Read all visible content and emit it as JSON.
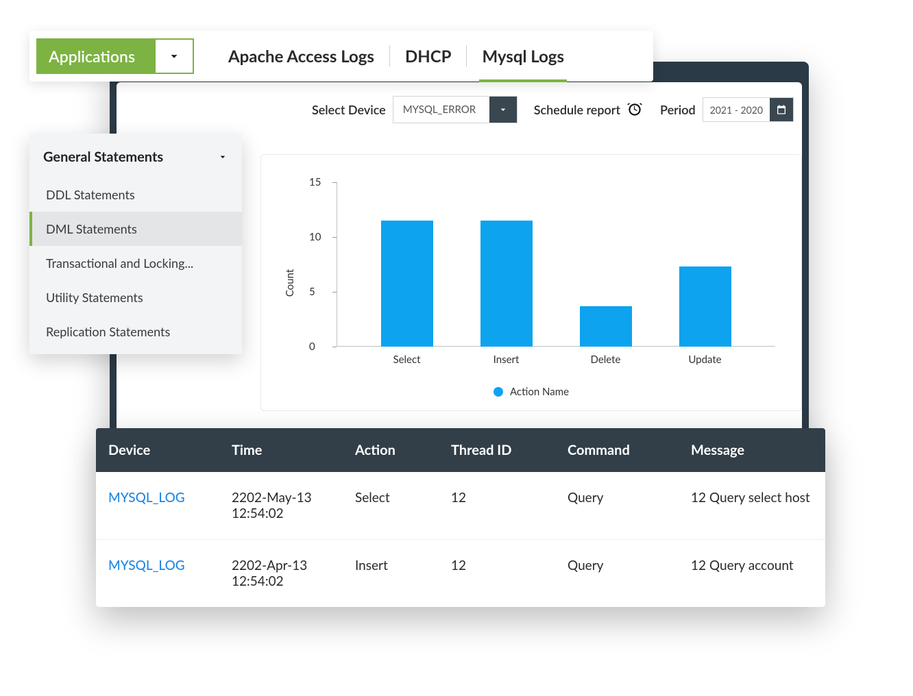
{
  "topbar": {
    "applications_label": "Applications",
    "tabs": [
      {
        "label": "Apache Access Logs",
        "active": false
      },
      {
        "label": "DHCP",
        "active": false
      },
      {
        "label": "Mysql Logs",
        "active": true
      }
    ]
  },
  "controls": {
    "select_device_label": "Select Device",
    "device_value": "MYSQL_ERROR",
    "schedule_label": "Schedule report",
    "period_label": "Period",
    "period_value": "2021 - 2020"
  },
  "sidebar": {
    "title": "General Statements",
    "items": [
      {
        "label": "DDL Statements",
        "active": false
      },
      {
        "label": "DML Statements",
        "active": true
      },
      {
        "label": "Transactional and Locking...",
        "active": false
      },
      {
        "label": "Utility Statements",
        "active": false
      },
      {
        "label": "Replication Statements",
        "active": false
      }
    ]
  },
  "chart": {
    "type": "bar",
    "ylabel": "Count",
    "ylim": [
      0,
      15
    ],
    "yticks": [
      0,
      5,
      10,
      15
    ],
    "categories": [
      "Select",
      "Insert",
      "Delete",
      "Update"
    ],
    "values": [
      11.5,
      11.5,
      3.7,
      7.3
    ],
    "bar_color": "#0da3ef",
    "legend_label": "Action Name",
    "background_color": "#ffffff",
    "axis_color": "#c0c0c0",
    "label_fontsize": 15
  },
  "table": {
    "columns": [
      "Device",
      "Time",
      "Action",
      "Thread ID",
      "Command",
      "Message"
    ],
    "rows": [
      {
        "device": "MYSQL_LOG",
        "time": "2202-May-13 12:54:02",
        "action": "Select",
        "thread": "12",
        "command": "Query",
        "message": "12 Query select host"
      },
      {
        "device": "MYSQL_LOG",
        "time": "2202-Apr-13 12:54:02",
        "action": "Insert",
        "thread": "12",
        "command": "Query",
        "message": "12 Query account"
      }
    ],
    "header_bg": "#323e48",
    "header_fg": "#ffffff",
    "link_color": "#1e88e5"
  },
  "colors": {
    "accent_green": "#7cb342",
    "dark_panel": "#2a3a46",
    "dark_control": "#3a4750"
  }
}
